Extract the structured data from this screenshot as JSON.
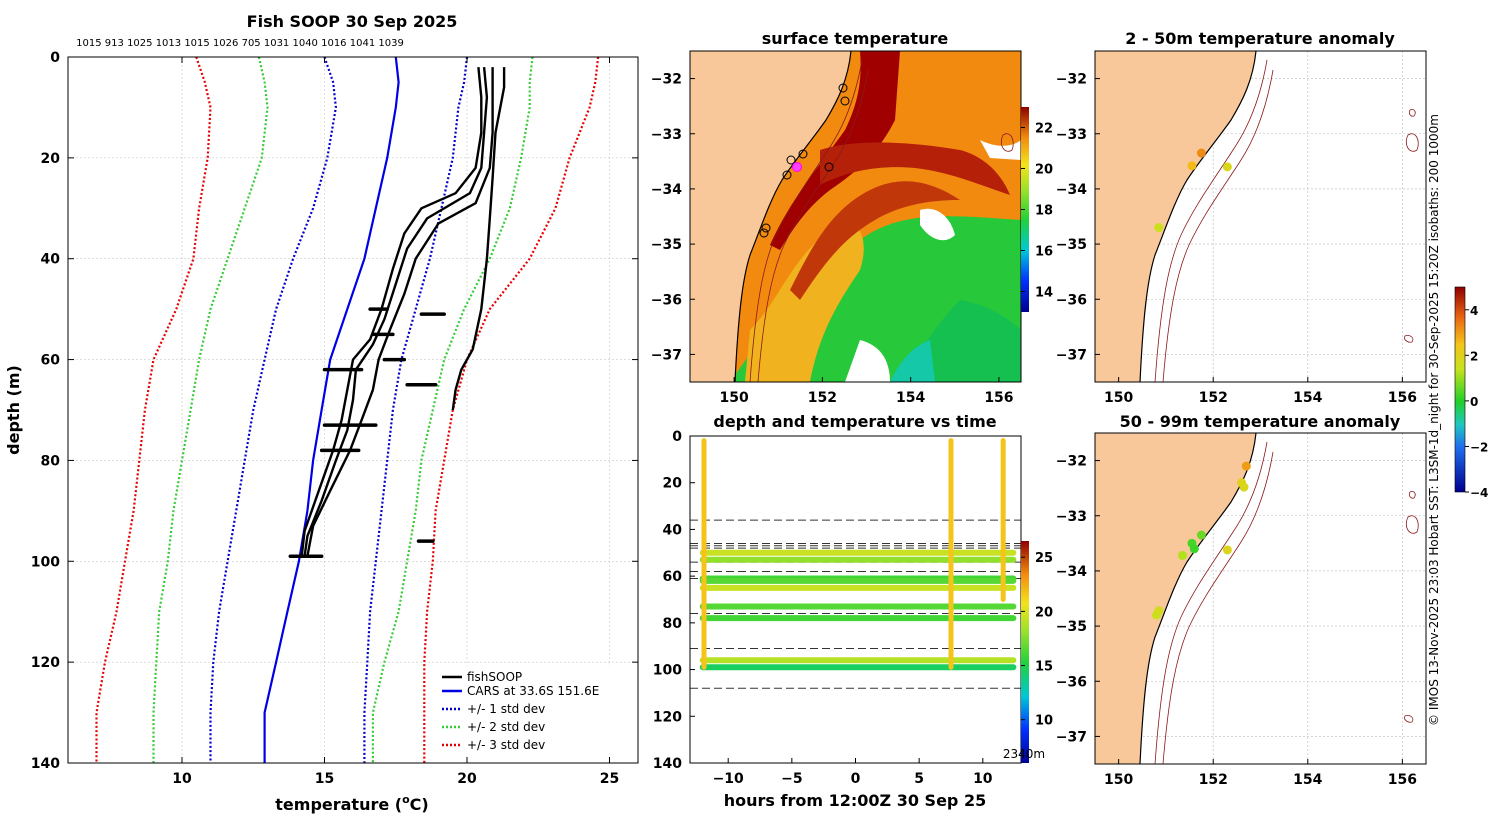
{
  "figure": {
    "credit": "© IMOS 13-Nov-2025 23:03 Hobart SST: L3SM-1d_night for 30-Sep-2025 15:20Z isobaths: 200  1000m"
  },
  "colors": {
    "fish": "#000000",
    "cars": "#0000e6",
    "std1": "#0000cc",
    "std2": "#33cc33",
    "std3": "#e60000",
    "land": "#f9c89a"
  },
  "chart_data": [
    {
      "type": "line",
      "id": "profile",
      "title": "Fish SOOP 30 Sep 2025",
      "xlabel": "temperature (",
      "xlabel_sup": "o",
      "xlabel_tail": "C)",
      "ylabel": "depth (m)",
      "xlim": [
        6,
        26
      ],
      "ylim": [
        140,
        0
      ],
      "xticks": [
        10,
        15,
        20,
        25
      ],
      "yticks": [
        0,
        20,
        40,
        60,
        80,
        100,
        120,
        140
      ],
      "top_labels": "1015 913 1025 1013 1015 1026 705 1031 1040 1016 1041 1039",
      "legend": [
        "fishSOOP",
        "CARS at 33.6S 151.6E",
        "+/- 1 std dev",
        "+/- 2 std dev",
        "+/- 3 std dev"
      ],
      "legend_position": "bottom-right",
      "depths": [
        0,
        5,
        10,
        20,
        30,
        40,
        50,
        60,
        70,
        80,
        90,
        100,
        110,
        120,
        130,
        140
      ],
      "cars": [
        17.5,
        17.6,
        17.5,
        17.2,
        16.8,
        16.4,
        15.8,
        15.2,
        14.9,
        14.6,
        14.4,
        14.1,
        13.7,
        13.3,
        12.9,
        12.9
      ],
      "std1_left": [
        15.0,
        15.3,
        15.4,
        15.1,
        14.6,
        13.9,
        13.3,
        12.9,
        12.5,
        12.2,
        11.9,
        11.6,
        11.3,
        11.1,
        11.0,
        11.0
      ],
      "std1_right": [
        20.0,
        19.9,
        19.7,
        19.5,
        19.1,
        18.7,
        18.2,
        17.7,
        17.4,
        17.2,
        17.0,
        16.8,
        16.6,
        16.5,
        16.4,
        16.4
      ],
      "std2_left": [
        12.7,
        12.9,
        13.0,
        12.8,
        12.2,
        11.6,
        11.0,
        10.6,
        10.3,
        10.0,
        9.7,
        9.5,
        9.2,
        9.1,
        9.0,
        9.0
      ],
      "std2_right": [
        22.3,
        22.2,
        22.2,
        21.9,
        21.5,
        20.8,
        19.9,
        19.2,
        18.8,
        18.4,
        18.2,
        17.9,
        17.6,
        17.1,
        16.7,
        16.7
      ],
      "std3_left": [
        10.5,
        10.8,
        11.0,
        10.9,
        10.6,
        10.4,
        9.8,
        9.0,
        8.7,
        8.5,
        8.3,
        8.0,
        7.7,
        7.3,
        7.0,
        7.0
      ],
      "std3_right": [
        24.6,
        24.5,
        24.3,
        23.6,
        23.1,
        22.2,
        20.8,
        20.0,
        19.5,
        19.2,
        18.9,
        18.8,
        18.6,
        18.5,
        18.5,
        18.5
      ],
      "fish_casts": [
        {
          "name": "cast-1",
          "points": [
            [
              20.4,
              2
            ],
            [
              20.5,
              8
            ],
            [
              20.5,
              15
            ],
            [
              20.3,
              22
            ],
            [
              19.6,
              27
            ],
            [
              18.4,
              30
            ],
            [
              17.8,
              35
            ],
            [
              17.4,
              42
            ],
            [
              17.0,
              50
            ],
            [
              16.6,
              56
            ],
            [
              16.0,
              60
            ],
            [
              15.8,
              66
            ],
            [
              15.6,
              72
            ],
            [
              15.3,
              78
            ],
            [
              14.8,
              86
            ],
            [
              14.3,
              94
            ],
            [
              14.2,
              99
            ]
          ]
        },
        {
          "name": "cast-2",
          "points": [
            [
              20.6,
              2
            ],
            [
              20.7,
              8
            ],
            [
              20.6,
              15
            ],
            [
              20.5,
              22
            ],
            [
              20.1,
              27
            ],
            [
              18.6,
              32
            ],
            [
              17.9,
              38
            ],
            [
              17.5,
              45
            ],
            [
              17.1,
              52
            ],
            [
              16.7,
              57
            ],
            [
              16.1,
              62
            ],
            [
              16.0,
              68
            ],
            [
              15.8,
              74
            ],
            [
              15.4,
              80
            ],
            [
              14.9,
              88
            ],
            [
              14.4,
              95
            ],
            [
              14.3,
              99
            ]
          ]
        },
        {
          "name": "cast-3",
          "points": [
            [
              20.9,
              2
            ],
            [
              20.9,
              8
            ],
            [
              20.9,
              15
            ],
            [
              20.8,
              22
            ],
            [
              20.3,
              29
            ],
            [
              19.0,
              33
            ],
            [
              18.2,
              40
            ],
            [
              17.8,
              47
            ],
            [
              17.3,
              54
            ],
            [
              16.9,
              60
            ],
            [
              16.7,
              66
            ],
            [
              16.3,
              72
            ],
            [
              15.9,
              78
            ],
            [
              15.2,
              86
            ],
            [
              14.6,
              93
            ],
            [
              14.4,
              99
            ]
          ]
        },
        {
          "name": "cast-4",
          "points": [
            [
              21.3,
              2
            ],
            [
              21.3,
              6
            ],
            [
              21.0,
              15
            ],
            [
              20.9,
              24
            ],
            [
              20.8,
              32
            ],
            [
              20.7,
              40
            ],
            [
              20.5,
              50
            ],
            [
              20.2,
              58
            ],
            [
              19.8,
              62
            ],
            [
              19.6,
              66
            ],
            [
              19.5,
              70
            ]
          ]
        }
      ],
      "fish_dashes": [
        {
          "name": "dash-50",
          "depth": 50,
          "t0": 16.6,
          "t1": 17.2
        },
        {
          "name": "dash-51",
          "depth": 51,
          "t0": 18.4,
          "t1": 19.2
        },
        {
          "name": "dash-55",
          "depth": 55,
          "t0": 16.7,
          "t1": 17.4
        },
        {
          "name": "dash-60",
          "depth": 60,
          "t0": 17.1,
          "t1": 17.8
        },
        {
          "name": "dash-62",
          "depth": 62,
          "t0": 15.0,
          "t1": 16.3
        },
        {
          "name": "dash-65",
          "depth": 65,
          "t0": 17.9,
          "t1": 18.9
        },
        {
          "name": "dash-73",
          "depth": 73,
          "t0": 15.0,
          "t1": 16.8
        },
        {
          "name": "dash-78",
          "depth": 78,
          "t0": 14.9,
          "t1": 16.2
        },
        {
          "name": "dash-96",
          "depth": 96,
          "t0": 18.3,
          "t1": 18.8
        },
        {
          "name": "dash-99",
          "depth": 99,
          "t0": 13.8,
          "t1": 14.9
        }
      ]
    },
    {
      "type": "heatmap",
      "id": "sst-map",
      "title": "surface temperature",
      "xlim": [
        149,
        156.5
      ],
      "ylim": [
        -37.5,
        -31.5
      ],
      "xticks": [
        150,
        152,
        154,
        156
      ],
      "yticks": [
        -32,
        -33,
        -34,
        -35,
        -36,
        -37
      ],
      "colorbar_ticks": [
        14,
        16,
        18,
        20,
        22
      ],
      "colorbar_range": [
        13,
        23
      ]
    },
    {
      "type": "scatter",
      "id": "depth-time",
      "title": "depth and temperature vs time",
      "xlabel": "hours from 12:00Z 30 Sep 25",
      "xlim": [
        -13,
        13
      ],
      "ylim": [
        140,
        0
      ],
      "xticks": [
        -10,
        -5,
        0,
        5,
        10
      ],
      "yticks": [
        0,
        20,
        40,
        60,
        80,
        100,
        120,
        140
      ],
      "colorbar_ticks": [
        10,
        15,
        20,
        25
      ],
      "colorbar_range": [
        6,
        26.5
      ],
      "colorbar_note": "2340m",
      "dashed_depths": [
        36,
        46,
        47,
        48,
        54,
        58,
        61,
        76,
        91,
        108
      ],
      "tracks": [
        {
          "depth": 50,
          "temp": 19.5
        },
        {
          "depth": 53,
          "temp": 18.0
        },
        {
          "depth": 61,
          "temp": 16.0
        },
        {
          "depth": 62,
          "temp": 16.5
        },
        {
          "depth": 65,
          "temp": 19.5
        },
        {
          "depth": 73,
          "temp": 16.5
        },
        {
          "depth": 78,
          "temp": 16.0
        },
        {
          "depth": 96,
          "temp": 19.0
        },
        {
          "depth": 99,
          "temp": 14.5
        }
      ],
      "casts": [
        {
          "time": -11.9,
          "d0": 2,
          "d1": 99
        },
        {
          "time": 7.5,
          "d0": 2,
          "d1": 99
        },
        {
          "time": 11.6,
          "d0": 2,
          "d1": 70
        }
      ]
    },
    {
      "type": "scatter",
      "id": "anomaly-2-50",
      "title": "2 - 50m temperature anomaly",
      "xlim": [
        149.5,
        156.5
      ],
      "ylim": [
        -37.5,
        -31.5
      ],
      "xticks": [
        150,
        152,
        154,
        156
      ],
      "yticks": [
        -32,
        -33,
        -34,
        -35,
        -36,
        -37
      ],
      "points": [
        {
          "lon": 151.75,
          "lat": -33.35,
          "anom": 3.2
        },
        {
          "lon": 151.55,
          "lat": -33.58,
          "anom": 2.6
        },
        {
          "lon": 152.3,
          "lat": -33.6,
          "anom": 1.8
        },
        {
          "lon": 150.85,
          "lat": -34.7,
          "anom": 1.5
        }
      ]
    },
    {
      "type": "scatter",
      "id": "anomaly-50-99",
      "title": "50 - 99m temperature anomaly",
      "xlim": [
        149.5,
        156.5
      ],
      "ylim": [
        -37.5,
        -31.5
      ],
      "xticks": [
        150,
        152,
        154,
        156
      ],
      "yticks": [
        -32,
        -33,
        -34,
        -35,
        -36,
        -37
      ],
      "colorbar_ticks": [
        -4,
        -2,
        0,
        2,
        4
      ],
      "colorbar_range": [
        -4,
        5
      ],
      "points": [
        {
          "lon": 152.7,
          "lat": -32.1,
          "anom": 3.0
        },
        {
          "lon": 152.6,
          "lat": -32.4,
          "anom": 2.0
        },
        {
          "lon": 152.65,
          "lat": -32.48,
          "anom": 1.8
        },
        {
          "lon": 151.75,
          "lat": -33.35,
          "anom": 0.6
        },
        {
          "lon": 151.55,
          "lat": -33.5,
          "anom": 0.3
        },
        {
          "lon": 151.6,
          "lat": -33.6,
          "anom": 0.2
        },
        {
          "lon": 151.35,
          "lat": -33.72,
          "anom": 1.2
        },
        {
          "lon": 152.3,
          "lat": -33.62,
          "anom": 1.9
        },
        {
          "lon": 150.8,
          "lat": -34.8,
          "anom": 1.5
        },
        {
          "lon": 150.85,
          "lat": -34.72,
          "anom": 1.6
        }
      ]
    }
  ]
}
